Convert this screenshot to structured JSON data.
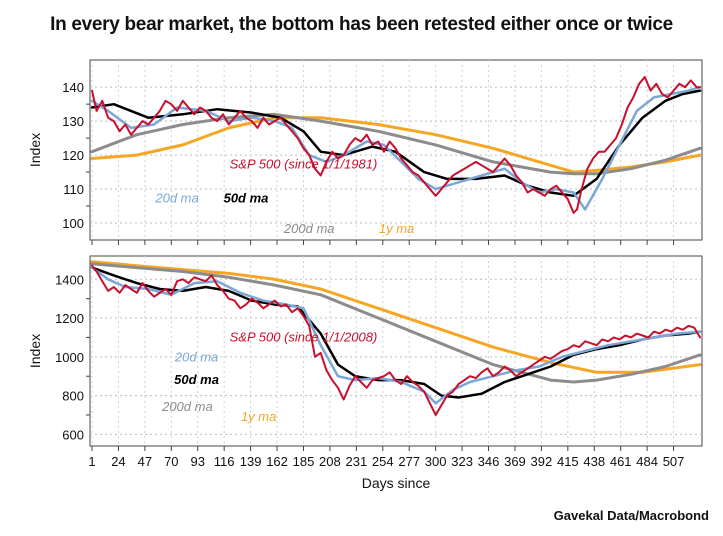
{
  "title": "In every bear market, the bottom has been retested either once or twice",
  "source": "Gavekal Data/Macrobond",
  "colors": {
    "sp500": "#c8102e",
    "ma20": "#7ba7d7",
    "ma50": "#000000",
    "ma200": "#8c8c8c",
    "ma1y": "#f5a623"
  },
  "chart_data": [
    {
      "type": "line",
      "ylabel": "Index",
      "ylim": [
        95,
        148
      ],
      "yticks": [
        "140",
        "130",
        "120",
        "110",
        "100"
      ],
      "ytick_values": [
        140,
        130,
        120,
        110,
        100
      ],
      "xlim": [
        1,
        530
      ],
      "grid": true,
      "annotations": [
        {
          "text": "S&P 500 (since 1/1/1981)",
          "series": "sp500",
          "x": 185,
          "y": 116
        },
        {
          "text": "20d ma",
          "series": "ma20",
          "x": 75,
          "y": 106
        },
        {
          "text": "50d ma",
          "series": "ma50",
          "x": 135,
          "y": 106
        },
        {
          "text": "200d ma",
          "series": "ma200",
          "x": 190,
          "y": 97
        },
        {
          "text": "1y ma",
          "series": "ma1y",
          "x": 266,
          "y": 97
        }
      ],
      "series": [
        {
          "key": "ma1y",
          "x": [
            1,
            40,
            80,
            120,
            160,
            200,
            250,
            300,
            350,
            400,
            420,
            440,
            470,
            500,
            530
          ],
          "values": [
            119,
            120,
            123,
            128,
            131,
            131,
            129,
            126,
            122,
            117,
            115,
            115.5,
            116.5,
            118,
            120
          ]
        },
        {
          "key": "ma200",
          "x": [
            1,
            40,
            80,
            120,
            160,
            200,
            250,
            300,
            350,
            400,
            420,
            440,
            470,
            500,
            530
          ],
          "values": [
            121,
            126,
            129,
            131,
            132,
            130,
            127,
            123,
            118,
            115,
            114.5,
            114.5,
            116,
            118.5,
            122
          ]
        },
        {
          "key": "ma50",
          "x": [
            1,
            20,
            50,
            80,
            110,
            140,
            165,
            185,
            200,
            220,
            245,
            265,
            290,
            310,
            335,
            360,
            380,
            400,
            420,
            440,
            460,
            480,
            500,
            515,
            530
          ],
          "values": [
            134,
            135,
            131,
            132,
            133.5,
            132.5,
            131,
            127,
            121,
            120,
            122.5,
            121,
            115,
            113,
            113,
            114,
            111,
            109,
            108,
            113,
            123,
            131,
            136,
            138,
            139
          ]
        },
        {
          "key": "ma20",
          "x": [
            1,
            15,
            35,
            55,
            75,
            100,
            120,
            140,
            160,
            175,
            190,
            205,
            220,
            240,
            255,
            270,
            285,
            300,
            320,
            340,
            360,
            375,
            390,
            405,
            420,
            430,
            445,
            460,
            475,
            490,
            505,
            520,
            530
          ],
          "values": [
            136,
            133,
            128,
            129,
            134,
            133,
            130,
            131,
            130,
            128,
            120,
            118,
            120,
            124,
            123,
            118,
            113,
            110,
            112,
            114,
            116,
            112,
            109,
            110,
            109,
            104,
            113,
            123,
            133,
            137,
            138,
            139,
            140
          ]
        },
        {
          "key": "sp500",
          "x": [
            1,
            5,
            10,
            15,
            20,
            25,
            30,
            35,
            40,
            45,
            50,
            55,
            60,
            65,
            70,
            75,
            80,
            85,
            90,
            95,
            100,
            105,
            110,
            115,
            120,
            125,
            130,
            135,
            140,
            145,
            150,
            155,
            160,
            165,
            170,
            175,
            180,
            185,
            190,
            195,
            200,
            205,
            210,
            215,
            220,
            225,
            230,
            235,
            240,
            245,
            250,
            255,
            260,
            265,
            270,
            275,
            280,
            285,
            290,
            295,
            300,
            305,
            310,
            315,
            320,
            325,
            330,
            335,
            340,
            345,
            350,
            355,
            360,
            365,
            370,
            375,
            380,
            385,
            390,
            395,
            400,
            405,
            410,
            415,
            420,
            423,
            427,
            432,
            437,
            442,
            447,
            452,
            457,
            462,
            467,
            472,
            477,
            482,
            487,
            492,
            497,
            502,
            507,
            512,
            517,
            522,
            527,
            530
          ],
          "values": [
            139,
            133,
            136,
            131,
            130,
            127,
            129,
            126,
            128,
            130,
            129,
            131,
            133,
            136,
            135,
            133,
            136,
            134,
            132,
            134,
            133,
            131,
            130,
            132,
            129,
            131,
            133,
            131,
            130,
            128,
            131,
            129,
            130,
            131,
            129,
            127,
            125,
            122,
            120,
            116,
            114,
            118,
            121,
            119,
            120,
            123,
            125,
            124,
            126,
            123,
            124,
            121,
            124,
            122,
            119,
            117,
            115,
            114,
            112,
            110,
            108,
            110,
            112,
            114,
            115,
            116,
            117,
            118,
            117,
            116,
            115,
            117,
            119,
            117,
            114,
            112,
            109,
            110,
            109,
            108,
            110,
            111,
            109,
            107,
            103,
            104,
            110,
            116,
            119,
            121,
            121,
            123,
            125,
            129,
            134,
            137,
            141,
            143,
            139,
            141,
            138,
            137,
            139,
            141,
            140,
            142,
            140,
            140
          ]
        }
      ]
    },
    {
      "type": "line",
      "ylabel": "Index",
      "xlabel": "Days since",
      "ylim": [
        540,
        1520
      ],
      "yticks": [
        "1400",
        "1200",
        "1000",
        "800",
        "600"
      ],
      "ytick_values": [
        1400,
        1200,
        1000,
        800,
        600
      ],
      "xlim": [
        1,
        530
      ],
      "xticks": [
        "1",
        "24",
        "47",
        "70",
        "93",
        "116",
        "139",
        "162",
        "185",
        "208",
        "231",
        "254",
        "277",
        "300",
        "323",
        "346",
        "369",
        "392",
        "415",
        "438",
        "461",
        "484",
        "507"
      ],
      "xtick_values": [
        1,
        24,
        47,
        70,
        93,
        116,
        139,
        162,
        185,
        208,
        231,
        254,
        277,
        300,
        323,
        346,
        369,
        392,
        415,
        438,
        461,
        484,
        507
      ],
      "grid": true,
      "annotations": [
        {
          "text": "S&P 500 (since 1/1/2008)",
          "series": "sp500",
          "x": 185,
          "y": 1080
        },
        {
          "text": "20d ma",
          "series": "ma20",
          "x": 92,
          "y": 975
        },
        {
          "text": "50d ma",
          "series": "ma50",
          "x": 92,
          "y": 860
        },
        {
          "text": "200d ma",
          "series": "ma200",
          "x": 84,
          "y": 720
        },
        {
          "text": "1y ma",
          "series": "ma1y",
          "x": 146,
          "y": 670
        }
      ],
      "series": [
        {
          "key": "ma1y",
          "x": [
            1,
            40,
            80,
            120,
            160,
            200,
            250,
            300,
            350,
            400,
            440,
            480,
            530
          ],
          "values": [
            1490,
            1470,
            1450,
            1430,
            1400,
            1350,
            1250,
            1150,
            1050,
            970,
            920,
            920,
            960
          ]
        },
        {
          "key": "ma200",
          "x": [
            1,
            40,
            80,
            120,
            160,
            200,
            250,
            300,
            350,
            400,
            420,
            440,
            470,
            500,
            530
          ],
          "values": [
            1480,
            1460,
            1440,
            1410,
            1370,
            1320,
            1200,
            1080,
            960,
            880,
            870,
            880,
            910,
            950,
            1010
          ]
        },
        {
          "key": "ma50",
          "x": [
            1,
            20,
            40,
            60,
            80,
            100,
            120,
            140,
            160,
            180,
            200,
            215,
            230,
            250,
            270,
            290,
            305,
            320,
            340,
            360,
            380,
            400,
            420,
            440,
            460,
            480,
            500,
            520,
            530
          ],
          "values": [
            1460,
            1420,
            1380,
            1350,
            1340,
            1360,
            1340,
            1290,
            1270,
            1260,
            1120,
            960,
            900,
            880,
            880,
            860,
            800,
            790,
            810,
            870,
            910,
            950,
            1010,
            1040,
            1060,
            1090,
            1110,
            1120,
            1130
          ]
        },
        {
          "key": "ma20",
          "x": [
            1,
            15,
            30,
            50,
            70,
            90,
            110,
            130,
            150,
            170,
            185,
            200,
            215,
            230,
            250,
            270,
            290,
            300,
            315,
            330,
            350,
            370,
            390,
            410,
            430,
            450,
            470,
            490,
            510,
            530
          ],
          "values": [
            1460,
            1400,
            1360,
            1350,
            1320,
            1380,
            1390,
            1330,
            1290,
            1270,
            1250,
            1060,
            900,
            880,
            890,
            870,
            820,
            760,
            830,
            870,
            900,
            930,
            950,
            1000,
            1030,
            1060,
            1080,
            1100,
            1120,
            1130
          ]
        },
        {
          "key": "sp500",
          "x": [
            1,
            5,
            10,
            15,
            20,
            25,
            30,
            35,
            40,
            45,
            50,
            55,
            60,
            65,
            70,
            75,
            80,
            85,
            90,
            95,
            100,
            105,
            110,
            115,
            120,
            125,
            130,
            135,
            140,
            145,
            150,
            155,
            160,
            165,
            170,
            175,
            180,
            185,
            190,
            195,
            200,
            205,
            210,
            215,
            220,
            225,
            230,
            235,
            240,
            245,
            250,
            255,
            260,
            265,
            270,
            275,
            280,
            285,
            290,
            295,
            300,
            305,
            310,
            315,
            320,
            325,
            330,
            335,
            340,
            345,
            350,
            355,
            360,
            365,
            370,
            375,
            380,
            385,
            390,
            395,
            400,
            405,
            410,
            415,
            420,
            425,
            430,
            435,
            440,
            445,
            450,
            455,
            460,
            465,
            470,
            475,
            480,
            485,
            490,
            495,
            500,
            505,
            510,
            515,
            520,
            525,
            530
          ],
          "values": [
            1470,
            1440,
            1390,
            1340,
            1360,
            1330,
            1370,
            1350,
            1330,
            1380,
            1340,
            1310,
            1330,
            1350,
            1320,
            1390,
            1400,
            1380,
            1410,
            1400,
            1390,
            1420,
            1370,
            1340,
            1300,
            1290,
            1250,
            1270,
            1300,
            1280,
            1250,
            1270,
            1290,
            1260,
            1270,
            1230,
            1250,
            1210,
            1160,
            1000,
            1020,
            930,
            880,
            840,
            780,
            850,
            900,
            870,
            840,
            880,
            890,
            900,
            920,
            880,
            860,
            900,
            870,
            850,
            820,
            760,
            700,
            750,
            800,
            820,
            860,
            880,
            900,
            890,
            920,
            940,
            900,
            920,
            950,
            930,
            900,
            920,
            940,
            960,
            980,
            1000,
            990,
            1010,
            1030,
            1040,
            1060,
            1050,
            1080,
            1070,
            1060,
            1090,
            1080,
            1100,
            1090,
            1110,
            1100,
            1120,
            1110,
            1100,
            1130,
            1120,
            1140,
            1130,
            1150,
            1140,
            1160,
            1150,
            1100
          ]
        }
      ]
    }
  ]
}
